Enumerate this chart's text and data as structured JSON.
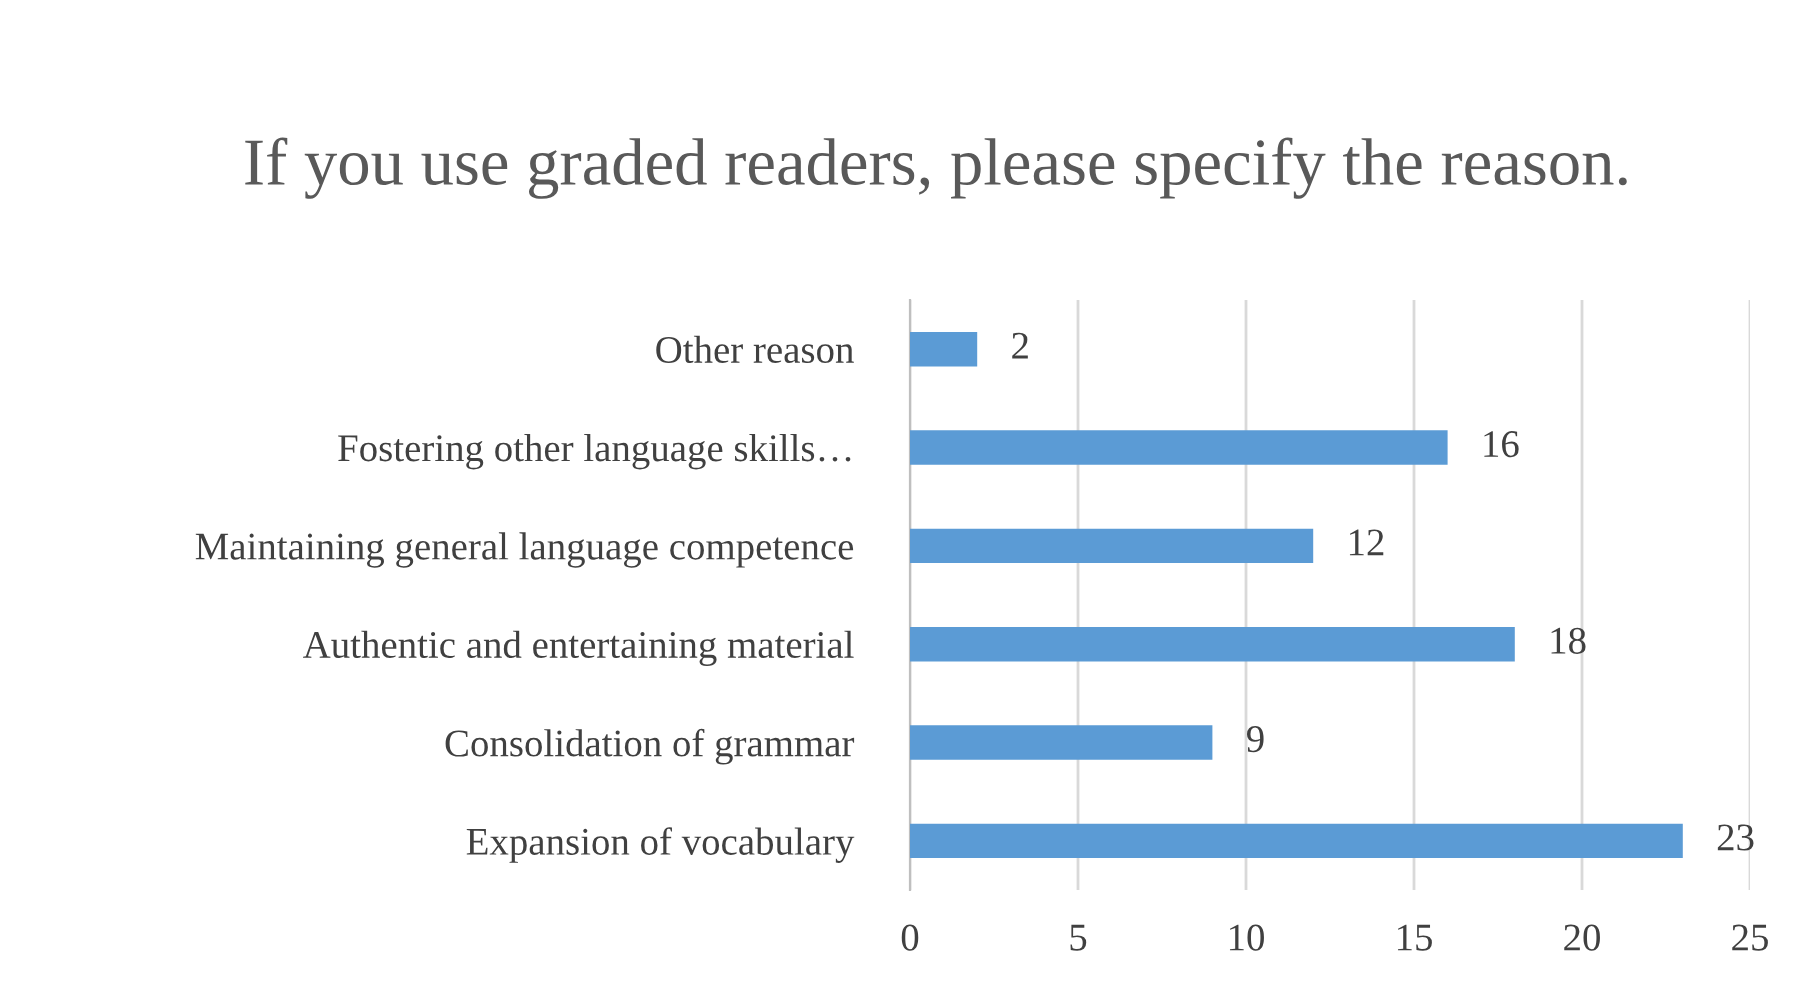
{
  "chart_data": {
    "type": "bar",
    "orientation": "horizontal",
    "title": "If you use graded readers, please specify the reason.",
    "categories": [
      "Other reason",
      "Fostering other language skills…",
      "Maintaining general language competence",
      "Authentic and entertaining material",
      "Consolidation of grammar",
      "Expansion of vocabulary"
    ],
    "values": [
      2,
      16,
      12,
      18,
      9,
      23
    ],
    "color": "#5b9bd5",
    "xlim": [
      0,
      25
    ],
    "xticks": [
      0,
      5,
      10,
      15,
      20,
      25
    ],
    "grid": "x",
    "data_labels": true
  }
}
